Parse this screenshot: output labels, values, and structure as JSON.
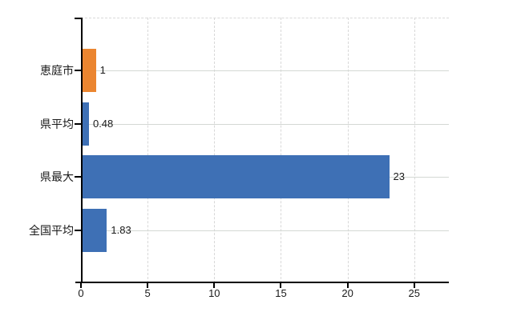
{
  "chart_data": {
    "type": "bar",
    "orientation": "horizontal",
    "title": "",
    "xlabel": "",
    "ylabel": "",
    "legend": false,
    "grid": true,
    "categories": [
      "恵庭市",
      "県平均",
      "県最大",
      "全国平均"
    ],
    "values": [
      1,
      0.48,
      23,
      1.83
    ],
    "value_labels": [
      "1",
      "0.48",
      "23",
      "1.83"
    ],
    "bar_colors": [
      "#EB8530",
      "#3E70B5",
      "#3E70B5",
      "#3E70B5"
    ],
    "highlight_color": "#EB8530",
    "default_color": "#3E70B5",
    "x_ticks": [
      "0",
      "5",
      "10",
      "15",
      "20",
      "25"
    ],
    "x_tick_values": [
      0,
      5,
      10,
      15,
      20,
      25
    ],
    "xlim": [
      0,
      27.6
    ]
  },
  "colors": {
    "background": "#ffffff",
    "axis": "#000000",
    "gridline_dashed": "#d8d8d8",
    "gridline_solid": "#d4d8d4",
    "text": "#1a1a1a"
  }
}
